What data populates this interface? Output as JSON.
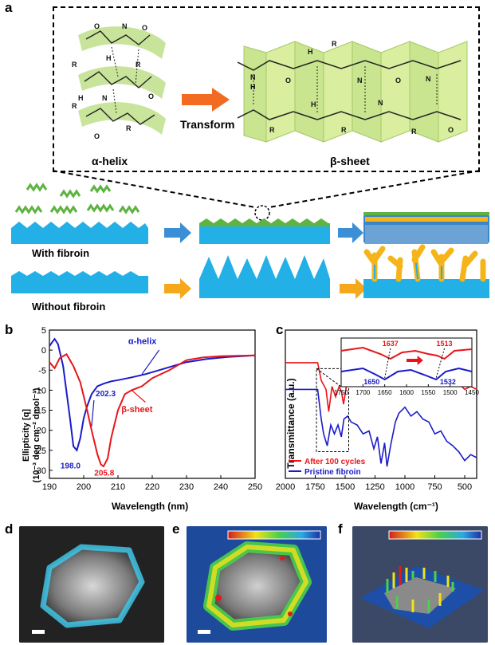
{
  "panel_labels": {
    "a": "a",
    "b": "b",
    "c": "c",
    "d": "d",
    "e": "e",
    "f": "f"
  },
  "panel_a": {
    "alpha_helix_label": "α-helix",
    "beta_sheet_label": "β-sheet",
    "transform_label": "Transform",
    "with_fibroin_label": "With  fibroin",
    "without_fibroin_label": "Without fibroin",
    "colors": {
      "electrode": "#22b0e6",
      "fibroin": "#5fb341",
      "dendrite": "#f5b51a",
      "arrow_blue": "#3b8fd6",
      "arrow_orange": "#f4a81a"
    }
  },
  "chart_b": {
    "xlabel": "Wavelength  (nm)",
    "ylabel_line1": "Ellipticity [q]",
    "ylabel_line2": "(10⁻³ deg cm⁻² dmol⁻¹)",
    "xticks": [
      "190",
      "200",
      "210",
      "220",
      "230",
      "240",
      "250"
    ],
    "yticks": [
      "5",
      "0",
      "-5",
      "-10",
      "-15",
      "-20",
      "-25",
      "-30"
    ],
    "annotations": {
      "helix": "α-helix",
      "sheet": "β-sheet",
      "p1": "198.0",
      "p2": "202.3",
      "p3": "205.8"
    }
  },
  "chart_c": {
    "xlabel": "Wavelength  (cm⁻¹)",
    "ylabel": "Transmittance  (a.u.)",
    "xticks": [
      "2000",
      "1750",
      "1500",
      "1250",
      "1000",
      "750",
      "500"
    ],
    "inset_xticks": [
      "1750",
      "1700",
      "1650",
      "1600",
      "1550",
      "1500",
      "1450"
    ],
    "legend": {
      "red": "After  100  cycles",
      "blue": "Pristine  fibroin"
    },
    "inset_labels": {
      "r1": "1637",
      "r2": "1513",
      "b1": "1650",
      "b2": "1532"
    }
  },
  "chart_data": [
    {
      "type": "line",
      "xlabel": "Wavelength  (nm)",
      "ylabel": "Ellipticity [q] (10⁻³ deg cm⁻² dmol⁻¹)",
      "xlim": [
        190,
        250
      ],
      "ylim": [
        -32,
        5
      ],
      "series": [
        {
          "name": "α-helix",
          "color": "#1b1bc8",
          "x": [
            190,
            191.5,
            192.5,
            194,
            196,
            197,
            198,
            199,
            200,
            201,
            202.3,
            204,
            206,
            208,
            210,
            214,
            218,
            222,
            226,
            230,
            236,
            242,
            250
          ],
          "y": [
            1,
            2.8,
            1.5,
            -4,
            -17,
            -24,
            -25,
            -22,
            -17,
            -14,
            -11,
            -9,
            -8.3,
            -7.8,
            -7.5,
            -6.8,
            -6,
            -5,
            -4,
            -3,
            -2.2,
            -1.7,
            -1.3
          ]
        },
        {
          "name": "β-sheet",
          "color": "#e8141a",
          "x": [
            190,
            191.5,
            193,
            195,
            197,
            199,
            201,
            202.3,
            204,
            205,
            205.8,
            207,
            208,
            210,
            212,
            214,
            217,
            220,
            225,
            228,
            230,
            235,
            240,
            250
          ],
          "y": [
            -3,
            -4.5,
            -2,
            -1,
            -4,
            -8,
            -15,
            -20,
            -26,
            -28.5,
            -29,
            -27,
            -22,
            -15,
            -11,
            -10,
            -9,
            -7,
            -5,
            -3.5,
            -2.5,
            -1.8,
            -1.5,
            -1.3
          ]
        }
      ],
      "annotations": [
        "198.0",
        "202.3",
        "205.8",
        "α-helix",
        "β-sheet"
      ]
    },
    {
      "type": "line",
      "xlabel": "Wavelength  (cm⁻¹)",
      "ylabel": "Transmittance  (a.u.)",
      "xlim": [
        2000,
        400
      ],
      "series": [
        {
          "name": "After  100  cycles",
          "color": "#e8141a",
          "x": [
            2000,
            1800,
            1730,
            1700,
            1660,
            1637,
            1610,
            1580,
            1550,
            1530,
            1513,
            1490,
            1460,
            1400,
            1300,
            1250,
            1200,
            1150,
            1100,
            1050,
            1000,
            950,
            900,
            850,
            800,
            750,
            700,
            650,
            600,
            550,
            500,
            450,
            400
          ],
          "y": [
            0.78,
            0.78,
            0.78,
            0.66,
            0.6,
            0.45,
            0.62,
            0.55,
            0.62,
            0.58,
            0.5,
            0.62,
            0.68,
            0.7,
            0.68,
            0.72,
            0.66,
            0.7,
            0.74,
            0.72,
            0.76,
            0.74,
            0.73,
            0.72,
            0.7,
            0.68,
            0.7,
            0.64,
            0.62,
            0.64,
            0.6,
            0.62,
            0.6
          ]
        },
        {
          "name": "Pristine  fibroin",
          "color": "#1b1bc8",
          "x": [
            2000,
            1800,
            1730,
            1700,
            1680,
            1650,
            1620,
            1590,
            1560,
            1532,
            1510,
            1480,
            1450,
            1400,
            1350,
            1300,
            1260,
            1230,
            1200,
            1170,
            1150,
            1120,
            1080,
            1050,
            1000,
            950,
            900,
            850,
            800,
            750,
            700,
            650,
            600,
            550,
            500,
            450,
            400
          ],
          "y": [
            0.6,
            0.6,
            0.6,
            0.4,
            0.3,
            0.22,
            0.36,
            0.3,
            0.36,
            0.28,
            0.4,
            0.42,
            0.38,
            0.36,
            0.3,
            0.32,
            0.2,
            0.28,
            0.1,
            0.24,
            0.08,
            0.22,
            0.38,
            0.44,
            0.48,
            0.42,
            0.45,
            0.4,
            0.38,
            0.3,
            0.32,
            0.25,
            0.22,
            0.18,
            0.12,
            0.16,
            0.14
          ]
        }
      ],
      "annotations": [
        "1637",
        "1513",
        "1650",
        "1532"
      ]
    }
  ]
}
